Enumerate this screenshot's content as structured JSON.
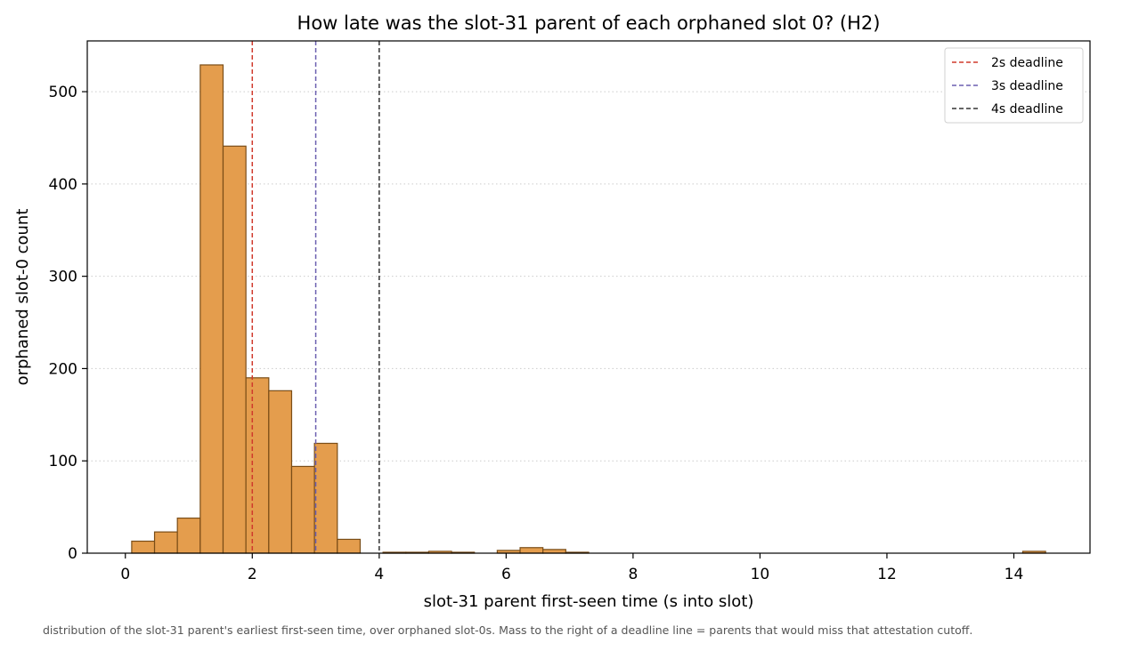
{
  "chart_data": {
    "type": "bar",
    "title": "How late was the slot-31 parent of each orphaned slot 0?  (H2)",
    "xlabel": "slot-31 parent first-seen time  (s into slot)",
    "ylabel": "orphaned slot-0 count",
    "xlim": [
      -0.6,
      15.2
    ],
    "ylim": [
      0,
      555
    ],
    "xticks": [
      "0",
      "2",
      "4",
      "6",
      "8",
      "10",
      "12",
      "14"
    ],
    "yticks": [
      "0",
      "100",
      "200",
      "300",
      "400",
      "500"
    ],
    "bin_width": 0.36,
    "bins": [
      {
        "x0": 0.1,
        "count": 13
      },
      {
        "x0": 0.46,
        "count": 23
      },
      {
        "x0": 0.82,
        "count": 38
      },
      {
        "x0": 1.18,
        "count": 529
      },
      {
        "x0": 1.54,
        "count": 441
      },
      {
        "x0": 1.9,
        "count": 190
      },
      {
        "x0": 2.26,
        "count": 176
      },
      {
        "x0": 2.62,
        "count": 94
      },
      {
        "x0": 2.98,
        "count": 119
      },
      {
        "x0": 3.34,
        "count": 15
      },
      {
        "x0": 4.06,
        "count": 1
      },
      {
        "x0": 4.42,
        "count": 1
      },
      {
        "x0": 4.78,
        "count": 2
      },
      {
        "x0": 5.14,
        "count": 1
      },
      {
        "x0": 5.86,
        "count": 3
      },
      {
        "x0": 6.22,
        "count": 6
      },
      {
        "x0": 6.58,
        "count": 4
      },
      {
        "x0": 6.94,
        "count": 1
      },
      {
        "x0": 14.14,
        "count": 2
      }
    ],
    "bar_color": "#e49d4d",
    "bar_edge_color": "#7a4d17",
    "grid": "y-dotted",
    "legend_position": "top-right",
    "reference_lines": [
      {
        "x": 2,
        "label": "2s deadline",
        "color": "#d03a2c"
      },
      {
        "x": 3,
        "label": "3s deadline",
        "color": "#6b5fb0"
      },
      {
        "x": 4,
        "label": "4s deadline",
        "color": "#333333"
      }
    ]
  },
  "caption": "distribution of the slot-31 parent's earliest first-seen time, over orphaned slot-0s. Mass to the right of a deadline line = parents that would miss that attestation cutoff."
}
